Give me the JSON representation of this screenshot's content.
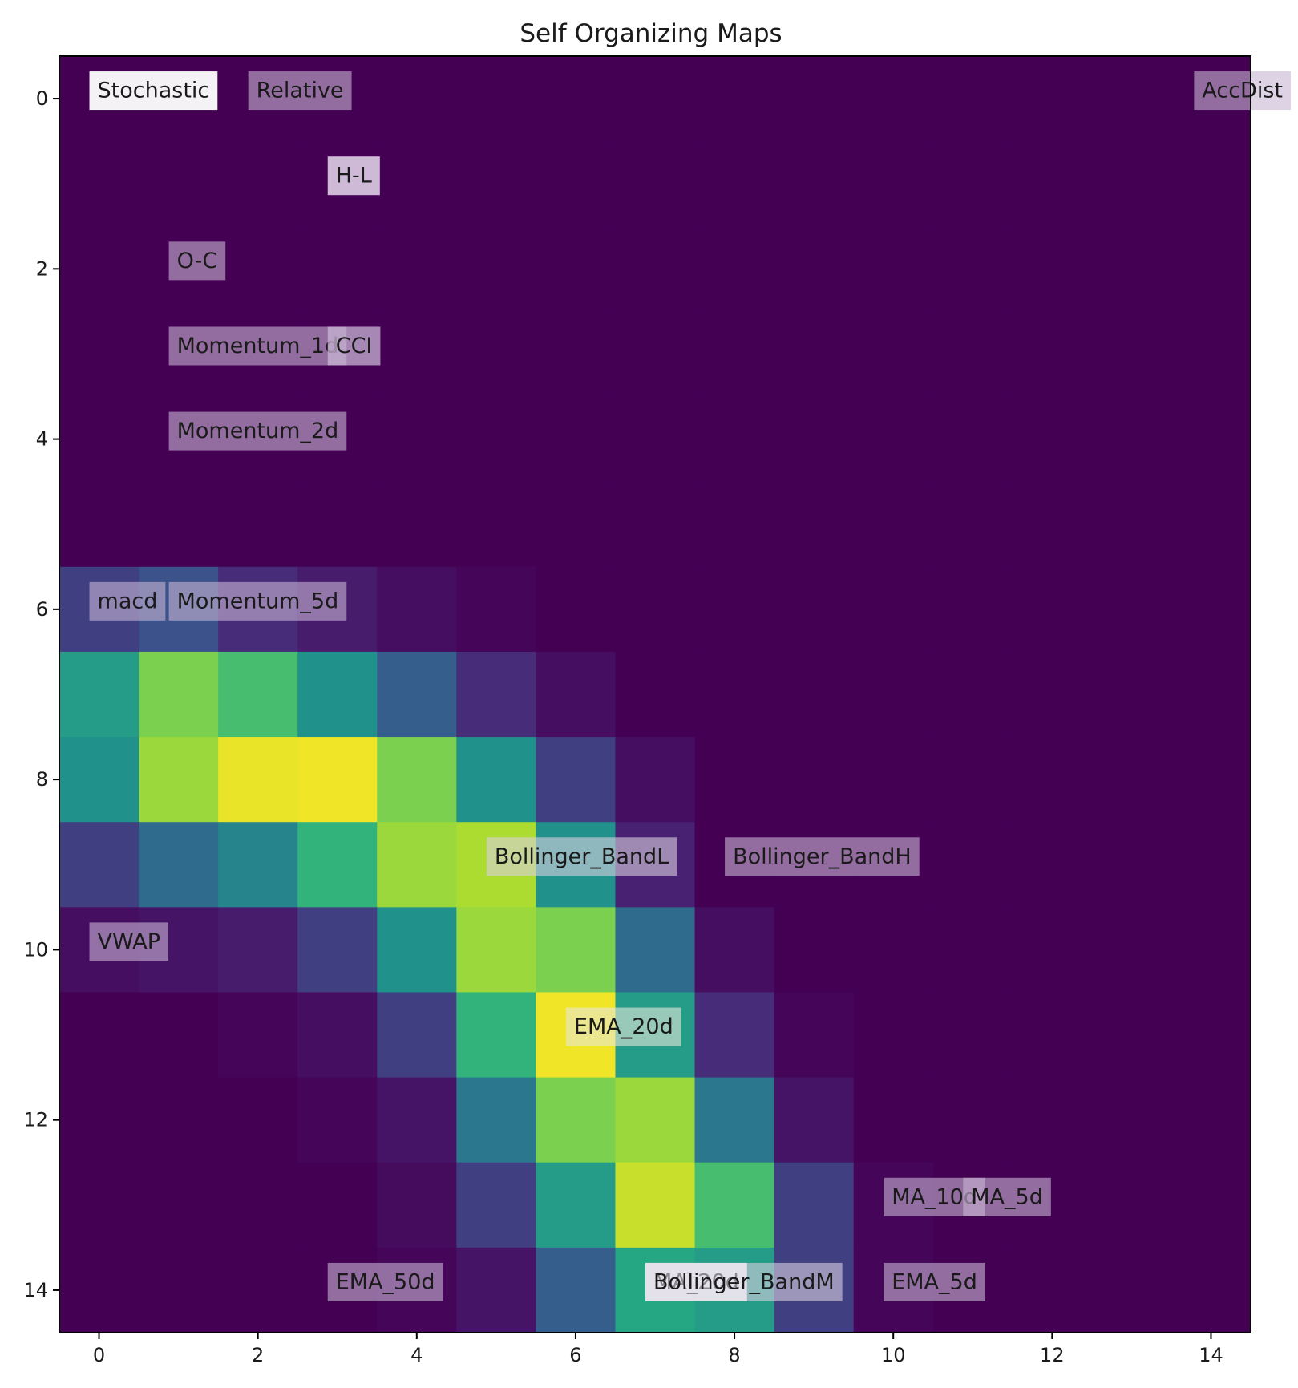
{
  "chart_data": {
    "type": "heatmap",
    "title": "Self Organizing Maps",
    "xlabel": "",
    "ylabel": "",
    "x_ticks": [
      "0",
      "2",
      "4",
      "6",
      "8",
      "10",
      "12",
      "14"
    ],
    "y_ticks": [
      "0",
      "2",
      "4",
      "6",
      "8",
      "10",
      "12",
      "14"
    ],
    "xlim": [
      -0.5,
      14.5
    ],
    "ylim": [
      14.5,
      -0.5
    ],
    "colormap": "viridis",
    "grid": false,
    "values": [
      [
        0,
        0,
        0,
        0,
        0,
        0,
        0,
        0,
        0,
        0,
        0,
        0,
        0,
        0,
        0
      ],
      [
        0,
        0,
        0,
        0,
        0,
        0,
        0,
        0,
        0,
        0,
        0,
        0,
        0,
        0,
        0
      ],
      [
        0,
        0,
        0,
        0,
        0,
        0,
        0,
        0,
        0,
        0,
        0,
        0,
        0,
        0,
        0
      ],
      [
        0,
        0,
        0,
        0,
        0,
        0,
        0,
        0,
        0,
        0,
        0,
        0,
        0,
        0,
        0
      ],
      [
        0,
        0,
        0,
        0,
        0,
        0,
        0,
        0,
        0,
        0,
        0,
        0,
        0,
        0,
        0
      ],
      [
        0,
        0,
        0,
        0,
        0,
        0,
        0,
        0,
        0,
        0,
        0,
        0,
        0,
        0,
        0
      ],
      [
        0.2,
        0.25,
        0.15,
        0.1,
        0.05,
        0.02,
        0,
        0,
        0,
        0,
        0,
        0,
        0,
        0,
        0
      ],
      [
        0.55,
        0.8,
        0.7,
        0.5,
        0.3,
        0.15,
        0.05,
        0,
        0,
        0,
        0,
        0,
        0,
        0,
        0
      ],
      [
        0.5,
        0.85,
        0.97,
        0.98,
        0.8,
        0.5,
        0.2,
        0.05,
        0,
        0,
        0,
        0,
        0,
        0,
        0
      ],
      [
        0.2,
        0.35,
        0.45,
        0.65,
        0.85,
        0.88,
        0.5,
        0.12,
        0,
        0,
        0,
        0,
        0,
        0,
        0
      ],
      [
        0.05,
        0.07,
        0.1,
        0.2,
        0.5,
        0.85,
        0.8,
        0.35,
        0.05,
        0,
        0,
        0,
        0,
        0,
        0
      ],
      [
        0,
        0,
        0.02,
        0.05,
        0.2,
        0.65,
        0.98,
        0.55,
        0.15,
        0.02,
        0,
        0,
        0,
        0,
        0
      ],
      [
        0,
        0,
        0,
        0.02,
        0.07,
        0.4,
        0.8,
        0.85,
        0.4,
        0.07,
        0,
        0,
        0,
        0,
        0
      ],
      [
        0,
        0,
        0,
        0,
        0.04,
        0.2,
        0.55,
        0.92,
        0.7,
        0.2,
        0.02,
        0,
        0,
        0,
        0
      ],
      [
        0,
        0,
        0,
        0,
        0.02,
        0.07,
        0.3,
        0.6,
        0.55,
        0.2,
        0.02,
        0,
        0,
        0,
        0
      ]
    ],
    "annotations": [
      {
        "text": "Stochastic",
        "x": 0,
        "y": 0,
        "bg": "#ffffff",
        "alpha": 0.95
      },
      {
        "text": "Relative",
        "x": 2,
        "y": 0,
        "bg": "#c8b4d4",
        "alpha": 0.6
      },
      {
        "text": "AccDist",
        "x": 14,
        "y": 0,
        "bg": "#c8b4d4",
        "alpha": 0.6
      },
      {
        "text": "H-L",
        "x": 3,
        "y": 1,
        "bg": "#e6d9ef",
        "alpha": 0.85
      },
      {
        "text": "O-C",
        "x": 1,
        "y": 2,
        "bg": "#c8b4d4",
        "alpha": 0.6
      },
      {
        "text": "Momentum_1d",
        "x": 1,
        "y": 3,
        "bg": "#c8b4d4",
        "alpha": 0.6
      },
      {
        "text": "CCI",
        "x": 3,
        "y": 3,
        "bg": "#c8b4d4",
        "alpha": 0.75
      },
      {
        "text": "Momentum_2d",
        "x": 1,
        "y": 4,
        "bg": "#c8b4d4",
        "alpha": 0.6
      },
      {
        "text": "macd",
        "x": 0,
        "y": 6,
        "bg": "#c8b4d4",
        "alpha": 0.6
      },
      {
        "text": "Momentum_5d",
        "x": 1,
        "y": 6,
        "bg": "#c8b4d4",
        "alpha": 0.6
      },
      {
        "text": "Bollinger_BandL",
        "x": 5,
        "y": 9,
        "bg": "#d8d0e0",
        "alpha": 0.6
      },
      {
        "text": "Bollinger_BandH",
        "x": 8,
        "y": 9,
        "bg": "#c8b4d4",
        "alpha": 0.6
      },
      {
        "text": "VWAP",
        "x": 0,
        "y": 10,
        "bg": "#c8b4d4",
        "alpha": 0.6
      },
      {
        "text": "EMA_20d",
        "x": 6,
        "y": 11,
        "bg": "#e8e8d8",
        "alpha": 0.6
      },
      {
        "text": "MA_10d",
        "x": 10,
        "y": 13,
        "bg": "#c8b4d4",
        "alpha": 0.6
      },
      {
        "text": "MA_5d",
        "x": 11,
        "y": 13,
        "bg": "#c8b4d4",
        "alpha": 0.6
      },
      {
        "text": "EMA_50d",
        "x": 3,
        "y": 14,
        "bg": "#c8b4d4",
        "alpha": 0.6
      },
      {
        "text": "MA_20d",
        "x": 7,
        "y": 14,
        "bg": "#ffffff",
        "alpha": 0.95
      },
      {
        "text": "Bollinger_BandM",
        "x": 7,
        "y": 14,
        "bg": "#d8d0e0",
        "alpha": 0.6
      },
      {
        "text": "EMA_5d",
        "x": 10,
        "y": 14,
        "bg": "#c8b4d4",
        "alpha": 0.6
      }
    ]
  }
}
